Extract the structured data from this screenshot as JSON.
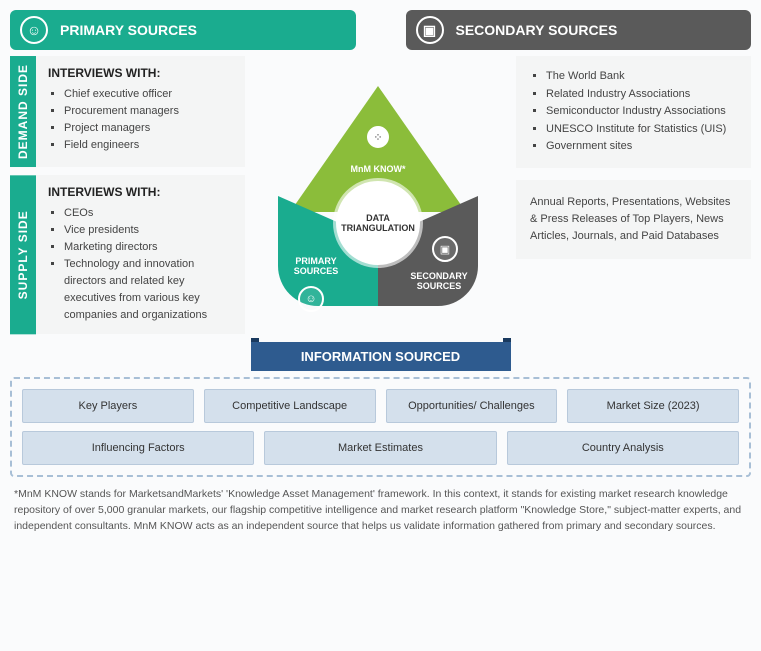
{
  "headers": {
    "primary": "PRIMARY SOURCES",
    "secondary": "SECONDARY SOURCES"
  },
  "demand": {
    "tab": "DEMAND SIDE",
    "title": "INTERVIEWS WITH:",
    "items": [
      "Chief executive officer",
      "Procurement managers",
      "Project managers",
      "Field engineers"
    ]
  },
  "supply": {
    "tab": "SUPPLY SIDE",
    "title": "INTERVIEWS WITH:",
    "items": [
      "CEOs",
      "Vice presidents",
      "Marketing directors",
      "Technology and innovation directors and related key executives from various key companies and organizations"
    ]
  },
  "secondary_list": [
    "The World Bank",
    "Related Industry Associations",
    "Semiconductor Industry Associations",
    "UNESCO Institute for Statistics (UIS)",
    "Government sites"
  ],
  "secondary_text": "Annual Reports, Presentations, Websites & Press Releases of Top Players, News Articles, Journals, and Paid Databases",
  "diagram": {
    "center": "DATA TRIANGULATION",
    "top": "MnM KNOW*",
    "left": "PRIMARY SOURCES",
    "right": "SECONDARY SOURCES"
  },
  "info_banner": "INFORMATION SOURCED",
  "info_row1": [
    "Key Players",
    "Competitive Landscape",
    "Opportunities/ Challenges",
    "Market Size (2023)"
  ],
  "info_row2": [
    "Influencing Factors",
    "Market Estimates",
    "Country Analysis"
  ],
  "footnote": "*MnM KNOW stands for MarketsandMarkets' 'Knowledge Asset Management' framework. In this context, it stands for existing market research knowledge repository of over 5,000 granular markets, our flagship competitive intelligence and market research platform \"Knowledge Store,\" subject-matter experts, and independent consultants. MnM KNOW acts as an independent source that helps us validate information gathered from primary and secondary sources.",
  "colors": {
    "teal": "#1aac8f",
    "grey": "#5a5a5a",
    "green": "#8bbd3a",
    "navy": "#2e5b8f",
    "lightblue": "#d4e0ec"
  }
}
